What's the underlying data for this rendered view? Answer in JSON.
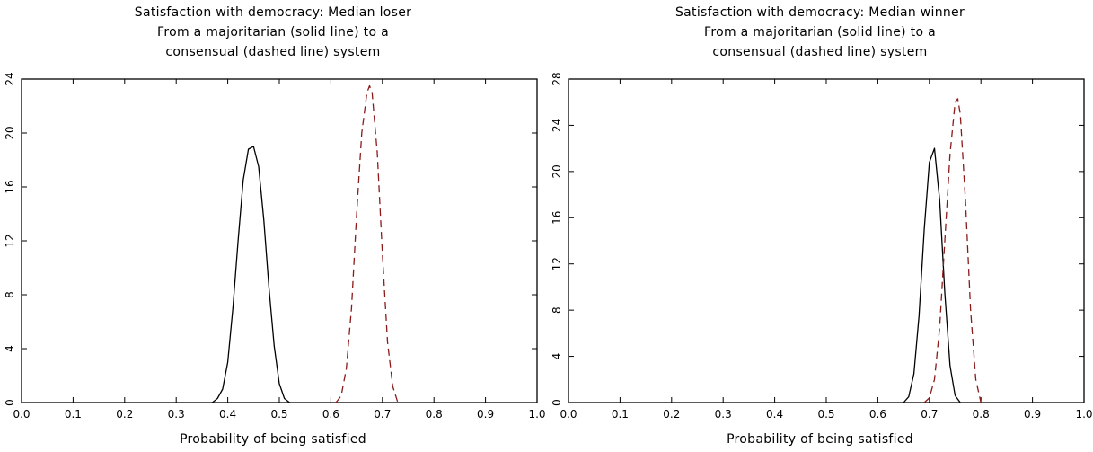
{
  "chart_data": [
    {
      "type": "line",
      "title_lines": [
        "Satisfaction with democracy: Median loser",
        "From a majoritarian (solid line) to a",
        "consensual (dashed line) system"
      ],
      "xlabel": "Probability of being satisfied",
      "ylabel": "",
      "xlim": [
        0.0,
        1.0
      ],
      "ylim": [
        0,
        24
      ],
      "xticks": [
        "0.0",
        "0.1",
        "0.2",
        "0.3",
        "0.4",
        "0.5",
        "0.6",
        "0.7",
        "0.8",
        "0.9",
        "1.0"
      ],
      "yticks": [
        "0",
        "4",
        "8",
        "12",
        "16",
        "20",
        "24"
      ],
      "grid": false,
      "series": [
        {
          "style": "solid",
          "color": "#000000",
          "x": [
            0.37,
            0.38,
            0.39,
            0.4,
            0.41,
            0.42,
            0.43,
            0.44,
            0.45,
            0.46,
            0.47,
            0.48,
            0.49,
            0.5,
            0.51,
            0.52
          ],
          "y": [
            0,
            0.3,
            1.0,
            3.0,
            7.0,
            12.0,
            16.5,
            18.8,
            19.0,
            17.5,
            13.5,
            8.5,
            4.2,
            1.4,
            0.3,
            0
          ]
        },
        {
          "style": "dashed",
          "color": "#8b1a1a",
          "x": [
            0.61,
            0.62,
            0.63,
            0.64,
            0.65,
            0.66,
            0.67,
            0.675,
            0.68,
            0.69,
            0.7,
            0.71,
            0.72,
            0.73
          ],
          "y": [
            0,
            0.5,
            2.5,
            7.0,
            14.0,
            20.0,
            23.0,
            23.5,
            23.0,
            18.5,
            11.0,
            4.5,
            1.2,
            0
          ]
        }
      ]
    },
    {
      "type": "line",
      "title_lines": [
        "Satisfaction with democracy: Median winner",
        "From a majoritarian (solid line) to a",
        "consensual (dashed line) system"
      ],
      "xlabel": "Probability of being satisfied",
      "ylabel": "",
      "xlim": [
        0.0,
        1.0
      ],
      "ylim": [
        0,
        28
      ],
      "xticks": [
        "0.0",
        "0.1",
        "0.2",
        "0.3",
        "0.4",
        "0.5",
        "0.6",
        "0.7",
        "0.8",
        "0.9",
        "1.0"
      ],
      "yticks": [
        "0",
        "4",
        "8",
        "12",
        "16",
        "20",
        "24",
        "28"
      ],
      "grid": false,
      "series": [
        {
          "style": "solid",
          "color": "#000000",
          "x": [
            0.65,
            0.66,
            0.67,
            0.68,
            0.69,
            0.7,
            0.71,
            0.72,
            0.73,
            0.74,
            0.75,
            0.76
          ],
          "y": [
            0,
            0.5,
            2.5,
            7.5,
            15.0,
            20.8,
            22.0,
            17.5,
            9.5,
            3.2,
            0.6,
            0
          ]
        },
        {
          "style": "dashed",
          "color": "#8b1a1a",
          "x": [
            0.69,
            0.7,
            0.71,
            0.72,
            0.73,
            0.74,
            0.75,
            0.755,
            0.76,
            0.77,
            0.78,
            0.79,
            0.8
          ],
          "y": [
            0,
            0.4,
            2.0,
            6.5,
            14.0,
            21.5,
            26.0,
            26.3,
            25.0,
            17.5,
            8.0,
            2.0,
            0
          ]
        }
      ]
    }
  ]
}
